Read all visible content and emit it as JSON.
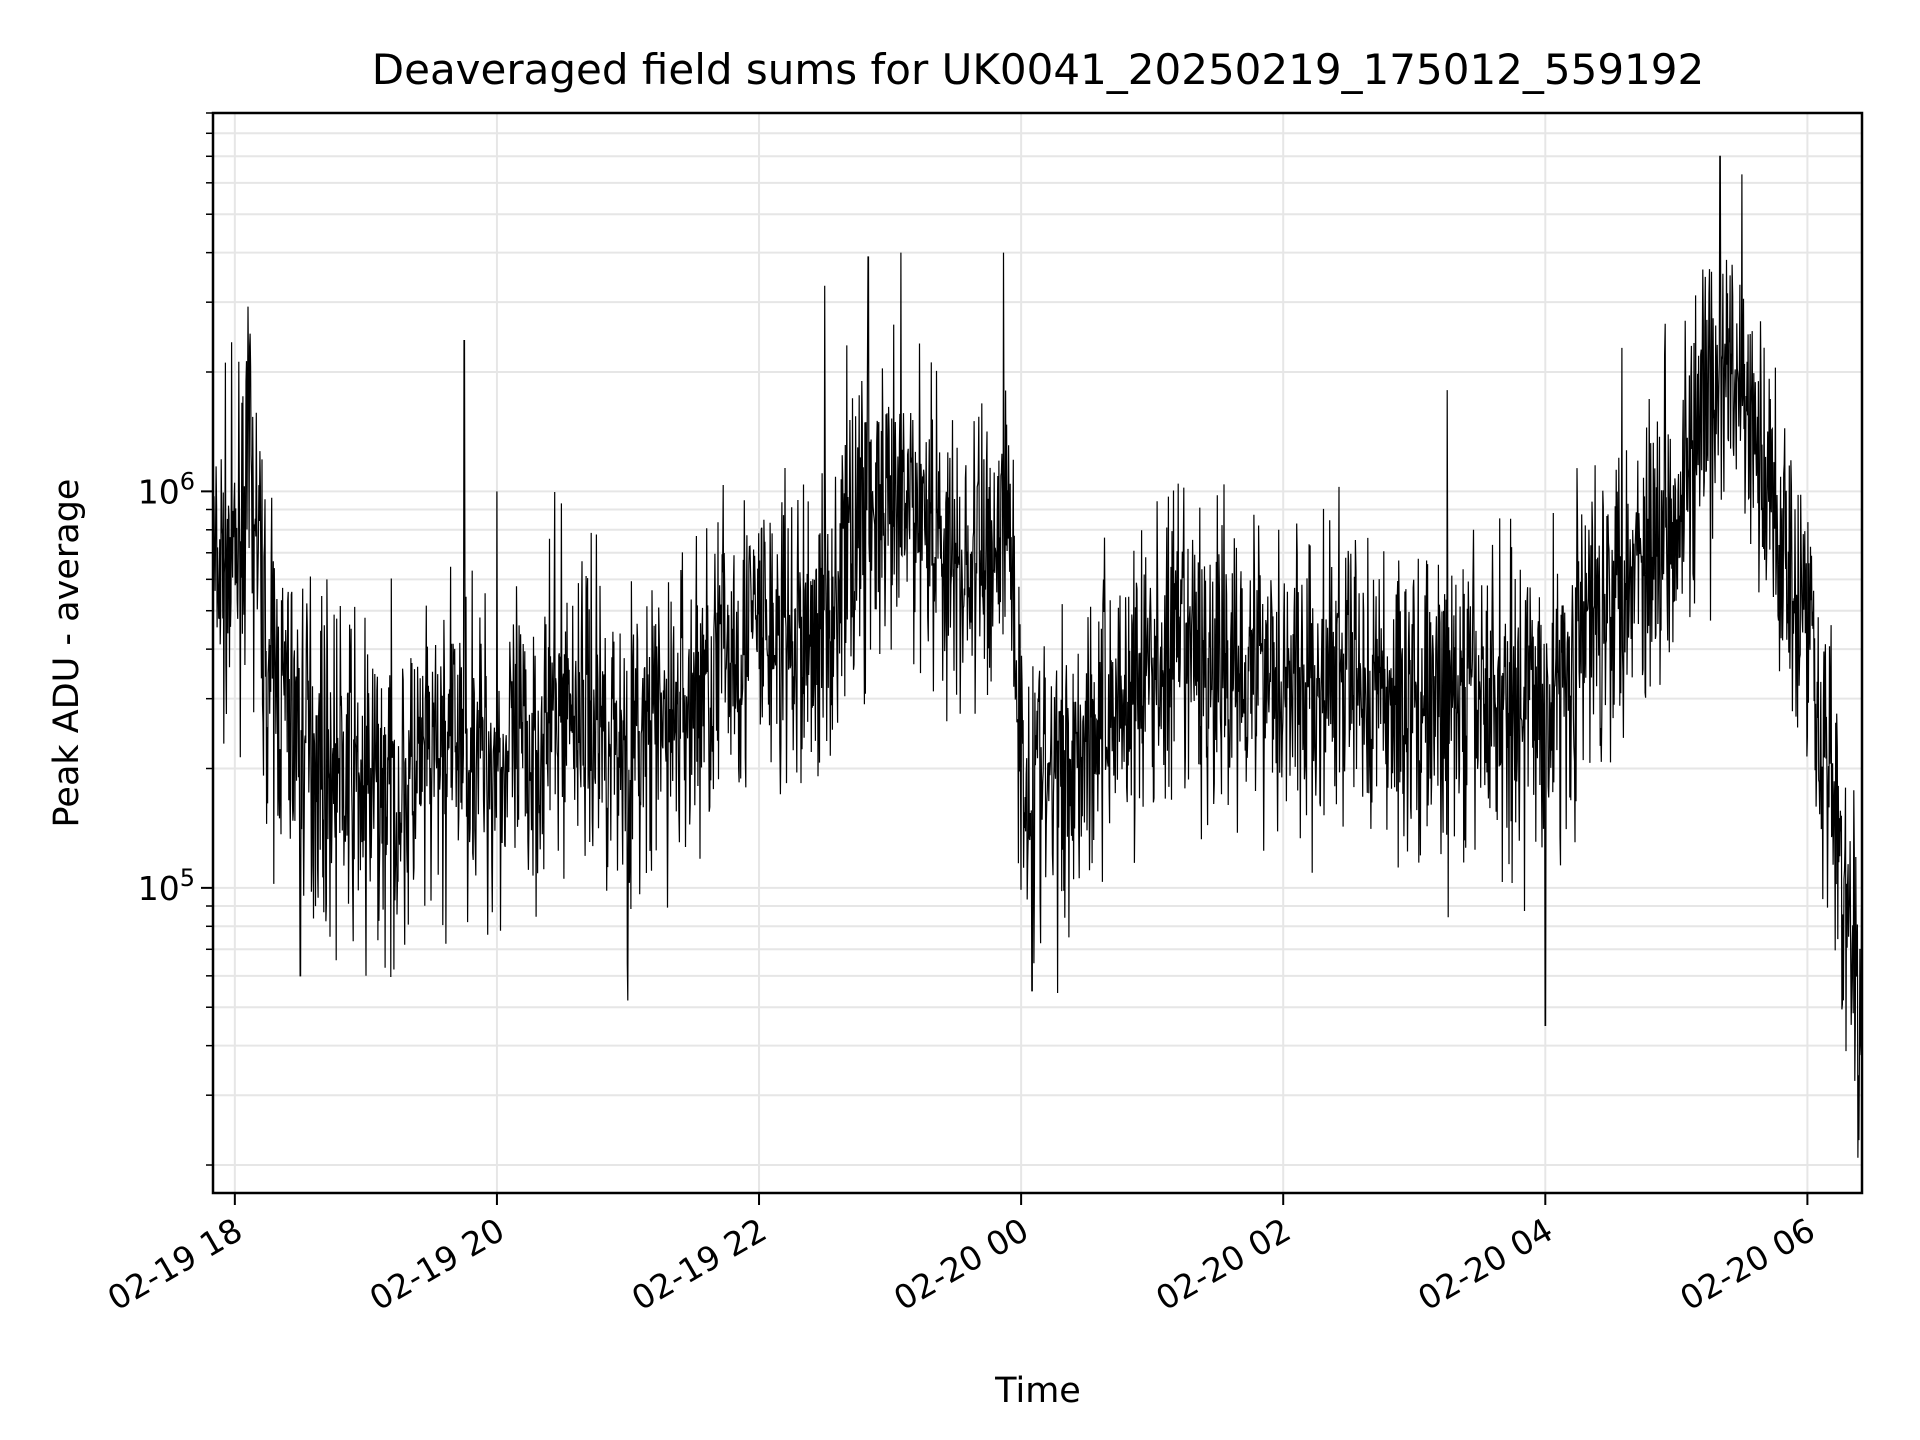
{
  "chart_data": {
    "type": "line",
    "title": "Deaveraged field sums for UK0041_20250219_175012_559192",
    "xlabel": "Time",
    "ylabel": "Peak ADU - average",
    "yscale": "log",
    "grid": true,
    "line_color": "#000000",
    "grid_color": "#e6e6e6",
    "x_range": [
      "2025-02-19 17:50",
      "2025-02-20 06:25"
    ],
    "ylim": [
      17000,
      9000000
    ],
    "x_ticks": [
      {
        "time": "2025-02-19 18:00",
        "label": "02-19 18"
      },
      {
        "time": "2025-02-19 20:00",
        "label": "02-19 20"
      },
      {
        "time": "2025-02-19 22:00",
        "label": "02-19 22"
      },
      {
        "time": "2025-02-20 00:00",
        "label": "02-20 00"
      },
      {
        "time": "2025-02-20 02:00",
        "label": "02-20 02"
      },
      {
        "time": "2025-02-20 04:00",
        "label": "02-20 04"
      },
      {
        "time": "2025-02-20 06:00",
        "label": "02-20 06"
      }
    ],
    "y_ticks": [
      {
        "value": 100000,
        "base": "10",
        "exp": "5"
      },
      {
        "value": 1000000,
        "base": "10",
        "exp": "6"
      }
    ],
    "series": [
      {
        "points": [
          [
            "2025-02-19 17:50",
            600000
          ],
          [
            "2025-02-19 18:00",
            650000
          ],
          [
            "2025-02-19 18:05",
            1000000
          ],
          [
            "2025-02-19 18:10",
            800000
          ],
          [
            "2025-02-19 18:15",
            350000
          ],
          [
            "2025-02-19 18:30",
            250000
          ],
          [
            "2025-02-19 18:45",
            200000
          ],
          [
            "2025-02-19 19:00",
            180000
          ],
          [
            "2025-02-19 19:15",
            170000
          ],
          [
            "2025-02-19 19:30",
            200000
          ],
          [
            "2025-02-19 19:45",
            250000
          ],
          [
            "2025-02-19 20:00",
            200000
          ],
          [
            "2025-02-19 20:15",
            220000
          ],
          [
            "2025-02-19 20:30",
            300000
          ],
          [
            "2025-02-19 20:45",
            280000
          ],
          [
            "2025-02-19 21:00",
            220000
          ],
          [
            "2025-02-19 21:15",
            250000
          ],
          [
            "2025-02-19 21:30",
            300000
          ],
          [
            "2025-02-19 21:45",
            400000
          ],
          [
            "2025-02-19 22:00",
            450000
          ],
          [
            "2025-02-19 22:15",
            400000
          ],
          [
            "2025-02-19 22:30",
            450000
          ],
          [
            "2025-02-19 22:45",
            900000
          ],
          [
            "2025-02-19 23:00",
            800000
          ],
          [
            "2025-02-19 23:15",
            1000000
          ],
          [
            "2025-02-19 23:30",
            600000
          ],
          [
            "2025-02-19 23:45",
            700000
          ],
          [
            "2025-02-19 23:55",
            900000
          ],
          [
            "2025-02-20 00:00",
            200000
          ],
          [
            "2025-02-20 00:15",
            180000
          ],
          [
            "2025-02-20 00:30",
            250000
          ],
          [
            "2025-02-20 00:45",
            300000
          ],
          [
            "2025-02-20 01:00",
            350000
          ],
          [
            "2025-02-20 01:15",
            400000
          ],
          [
            "2025-02-20 01:30",
            350000
          ],
          [
            "2025-02-20 01:45",
            400000
          ],
          [
            "2025-02-20 02:00",
            350000
          ],
          [
            "2025-02-20 02:15",
            300000
          ],
          [
            "2025-02-20 02:30",
            350000
          ],
          [
            "2025-02-20 02:45",
            300000
          ],
          [
            "2025-02-20 03:00",
            300000
          ],
          [
            "2025-02-20 03:15",
            280000
          ],
          [
            "2025-02-20 03:30",
            300000
          ],
          [
            "2025-02-20 03:45",
            300000
          ],
          [
            "2025-02-20 04:00",
            280000
          ],
          [
            "2025-02-20 04:15",
            400000
          ],
          [
            "2025-02-20 04:30",
            600000
          ],
          [
            "2025-02-20 04:45",
            700000
          ],
          [
            "2025-02-20 05:00",
            1000000
          ],
          [
            "2025-02-20 05:15",
            1500000
          ],
          [
            "2025-02-20 05:25",
            2000000
          ],
          [
            "2025-02-20 05:35",
            1300000
          ],
          [
            "2025-02-20 05:45",
            900000
          ],
          [
            "2025-02-20 06:00",
            500000
          ],
          [
            "2025-02-20 06:10",
            200000
          ],
          [
            "2025-02-20 06:25",
            40000
          ]
        ],
        "spikes": [
          [
            "2025-02-19 18:07",
            2500000
          ],
          [
            "2025-02-19 18:30",
            60000
          ],
          [
            "2025-02-19 19:00",
            60000
          ],
          [
            "2025-02-19 19:45",
            2400000
          ],
          [
            "2025-02-19 20:00",
            1000000
          ],
          [
            "2025-02-19 21:00",
            52000
          ],
          [
            "2025-02-19 22:30",
            3300000
          ],
          [
            "2025-02-19 22:50",
            3900000
          ],
          [
            "2025-02-19 23:05",
            4000000
          ],
          [
            "2025-02-19 23:52",
            4000000
          ],
          [
            "2025-02-20 00:05",
            55000
          ],
          [
            "2025-02-20 03:15",
            1800000
          ],
          [
            "2025-02-20 04:00",
            45000
          ],
          [
            "2025-02-20 04:35",
            2300000
          ],
          [
            "2025-02-20 05:20",
            7000000
          ],
          [
            "2025-02-20 05:30",
            6300000
          ],
          [
            "2025-02-20 06:25",
            21000
          ]
        ]
      }
    ]
  }
}
